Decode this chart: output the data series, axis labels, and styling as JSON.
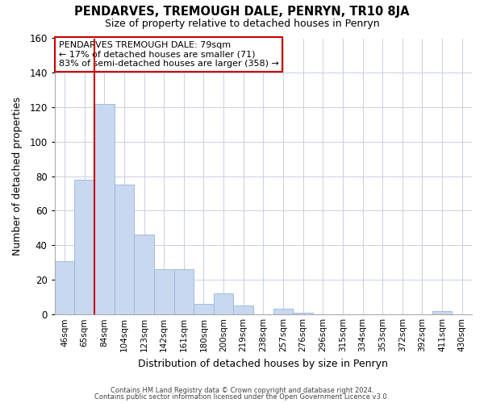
{
  "title": "PENDARVES, TREMOUGH DALE, PENRYN, TR10 8JA",
  "subtitle": "Size of property relative to detached houses in Penryn",
  "xlabel": "Distribution of detached houses by size in Penryn",
  "ylabel": "Number of detached properties",
  "bar_labels": [
    "46sqm",
    "65sqm",
    "84sqm",
    "104sqm",
    "123sqm",
    "142sqm",
    "161sqm",
    "180sqm",
    "200sqm",
    "219sqm",
    "238sqm",
    "257sqm",
    "276sqm",
    "296sqm",
    "315sqm",
    "334sqm",
    "353sqm",
    "372sqm",
    "392sqm",
    "411sqm",
    "430sqm"
  ],
  "bar_values": [
    31,
    78,
    122,
    75,
    46,
    26,
    26,
    6,
    12,
    5,
    0,
    3,
    1,
    0,
    0,
    0,
    0,
    0,
    0,
    2,
    0
  ],
  "bar_color": "#c8d8f0",
  "bar_edge_color": "#9ab4d8",
  "ylim": [
    0,
    160
  ],
  "yticks": [
    0,
    20,
    40,
    60,
    80,
    100,
    120,
    140,
    160
  ],
  "property_line_color": "#cc0000",
  "annotation_title": "PENDARVES TREMOUGH DALE: 79sqm",
  "annotation_line1": "← 17% of detached houses are smaller (71)",
  "annotation_line2": "83% of semi-detached houses are larger (358) →",
  "annotation_box_color": "#ffffff",
  "annotation_box_edge": "#cc0000",
  "footer1": "Contains HM Land Registry data © Crown copyright and database right 2024.",
  "footer2": "Contains public sector information licensed under the Open Government Licence v3.0.",
  "background_color": "#ffffff",
  "grid_color": "#c8d0e0"
}
